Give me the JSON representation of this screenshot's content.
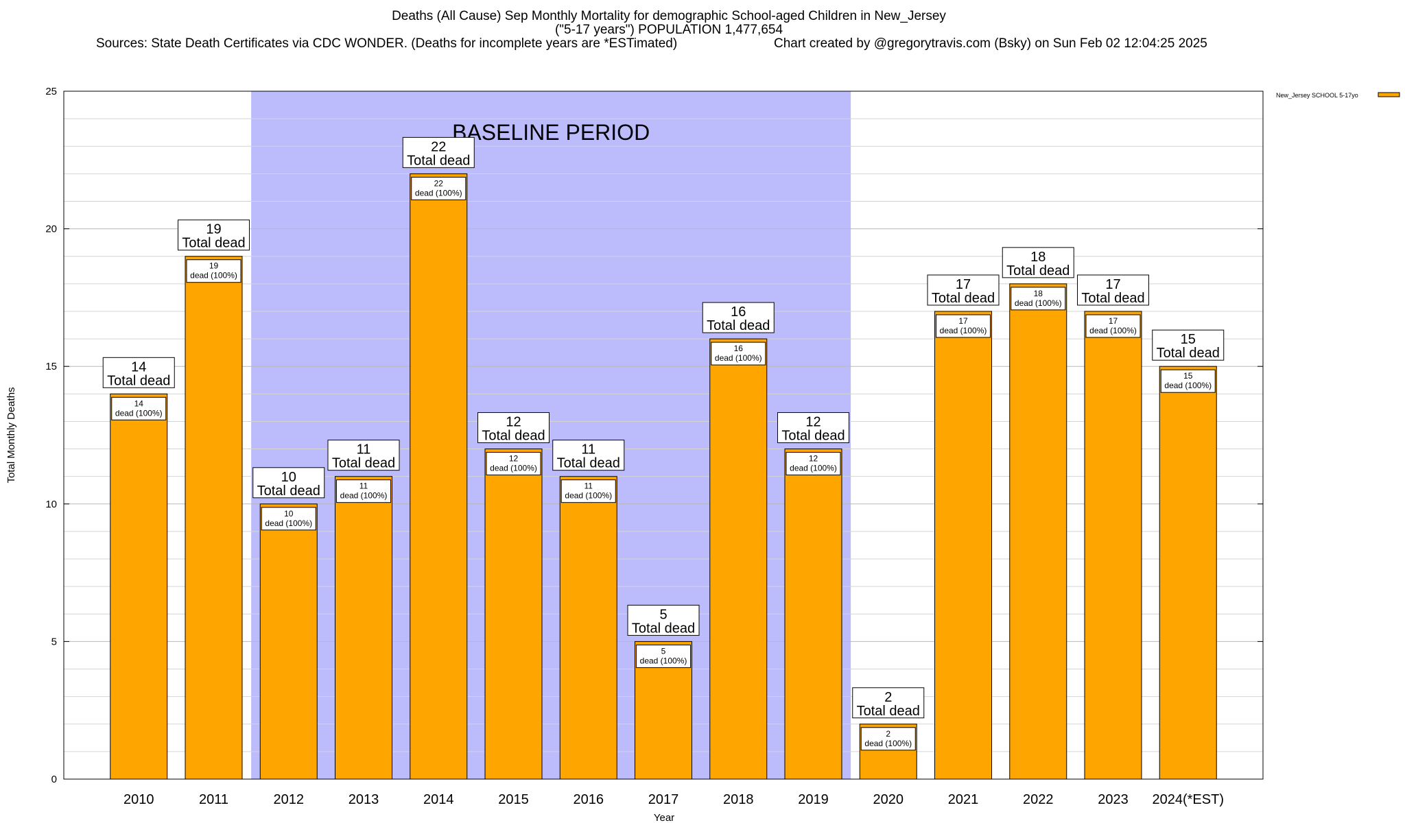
{
  "chart_data": {
    "type": "bar",
    "title": "Deaths (All Cause) Sep Monthly Mortality for demographic School-aged Children in New_Jersey",
    "subtitle": "(\"5-17 years\") POPULATION 1,477,654",
    "sources": "Sources: State Death Certificates via CDC WONDER. (Deaths for incomplete years are *ESTimated)",
    "credit": "Chart created by @gregorytravis.com (Bsky) on Sun Feb 02 12:04:25 2025",
    "xlabel": "Year",
    "ylabel": "Total Monthly Deaths",
    "ylim": [
      0,
      25
    ],
    "yticks": [
      0,
      5,
      10,
      15,
      20,
      25
    ],
    "grid": true,
    "categories": [
      "2010",
      "2011",
      "2012",
      "2013",
      "2014",
      "2015",
      "2016",
      "2017",
      "2018",
      "2019",
      "2020",
      "2021",
      "2022",
      "2023",
      "2024(*EST)"
    ],
    "series": [
      {
        "name": "New_Jersey SCHOOL 5-17yo",
        "color": "#ffa500",
        "values": [
          14,
          19,
          10,
          11,
          22,
          12,
          11,
          5,
          16,
          12,
          2,
          17,
          18,
          17,
          15
        ]
      }
    ],
    "top_label_suffix": "Total dead",
    "inner_label_suffix": "dead (100%)",
    "baseline": {
      "label": "BASELINE PERIOD",
      "from": "2012",
      "to": "2019",
      "color": "#bcbcfc"
    },
    "legend_position": "top-right"
  }
}
